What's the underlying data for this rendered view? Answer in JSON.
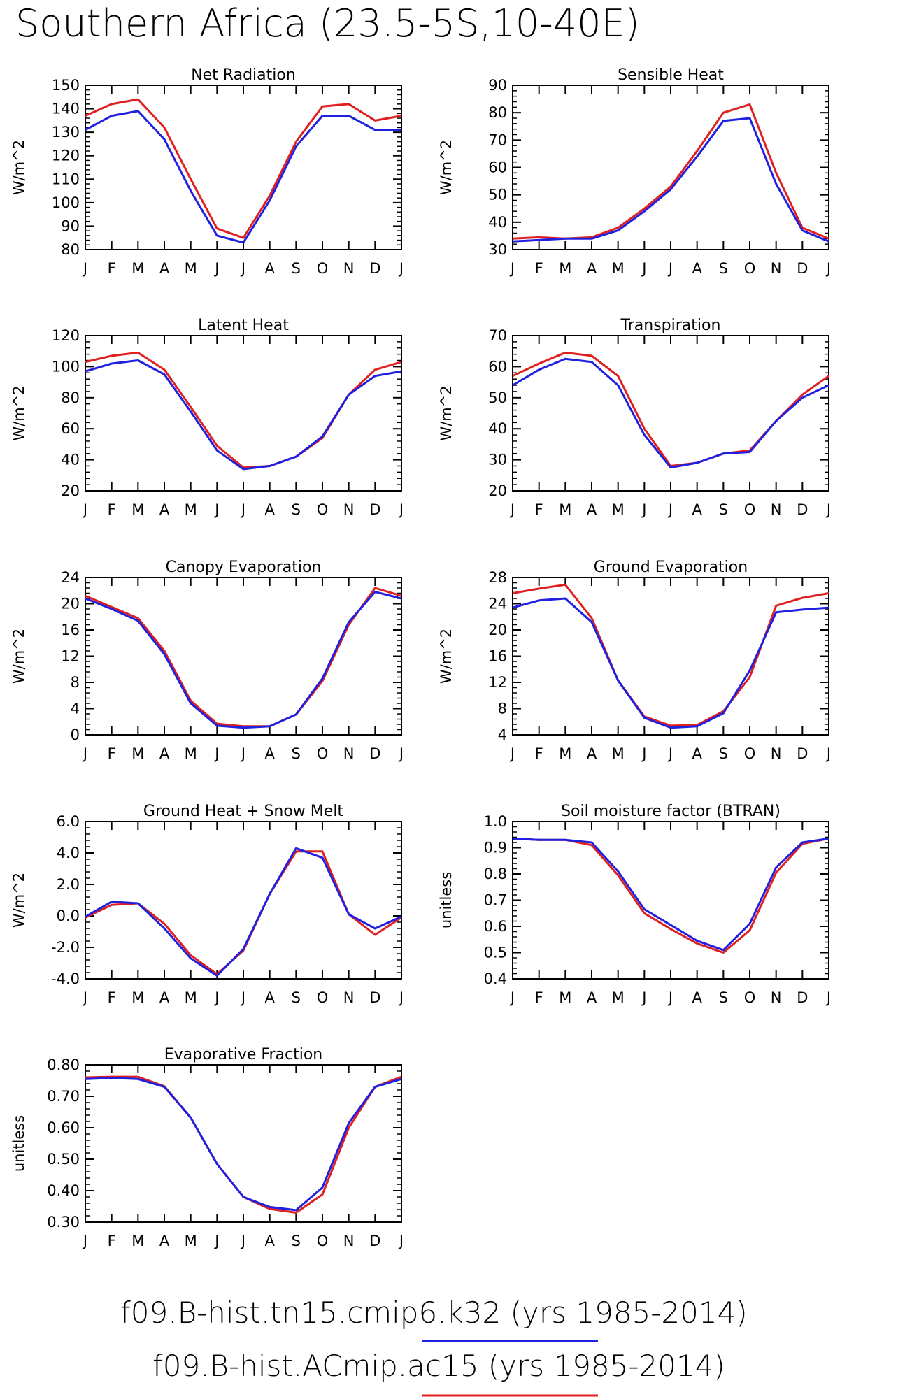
{
  "title": "Southern Africa (23.5-5S,10-40E)",
  "legend": [
    {
      "label": "f09.B-hist.tn15.cmip6.k32 (yrs 1985-2014)",
      "color": "#2020e0"
    },
    {
      "label": "f09.B-hist.ACmip.ac15 (yrs 1985-2014)",
      "color": "#e02020"
    }
  ],
  "chart_data": [
    {
      "type": "line",
      "title": "Net Radiation",
      "ylabel": "W/m^2",
      "x": [
        "J",
        "F",
        "M",
        "A",
        "M",
        "J",
        "J",
        "A",
        "S",
        "O",
        "N",
        "D",
        "J"
      ],
      "ylim": [
        80,
        150
      ],
      "yticks": [
        "150",
        "140",
        "130",
        "120",
        "110",
        "100",
        "90",
        "80"
      ],
      "series": [
        {
          "color": "#e02020",
          "values": [
            137,
            142,
            144,
            132,
            110,
            89,
            85,
            103,
            126,
            141,
            142,
            135,
            137
          ]
        },
        {
          "color": "#2020e0",
          "values": [
            131,
            137,
            139,
            127,
            105,
            86,
            83,
            101,
            124,
            137,
            137,
            131,
            131
          ]
        }
      ]
    },
    {
      "type": "line",
      "title": "Sensible Heat",
      "ylabel": "W/m^2",
      "x": [
        "J",
        "F",
        "M",
        "A",
        "M",
        "J",
        "J",
        "A",
        "S",
        "O",
        "N",
        "D",
        "J"
      ],
      "ylim": [
        30,
        90
      ],
      "yticks": [
        "90",
        "80",
        "70",
        "60",
        "50",
        "40",
        "30"
      ],
      "series": [
        {
          "color": "#e02020",
          "values": [
            34,
            34.5,
            34,
            34.5,
            38,
            45,
            53,
            66,
            80,
            83,
            58,
            38,
            34
          ]
        },
        {
          "color": "#2020e0",
          "values": [
            33,
            33.5,
            34,
            34,
            37,
            44,
            52,
            64,
            77,
            78,
            54,
            37,
            33
          ]
        }
      ]
    },
    {
      "type": "line",
      "title": "Latent Heat",
      "ylabel": "W/m^2",
      "x": [
        "J",
        "F",
        "M",
        "A",
        "M",
        "J",
        "J",
        "A",
        "S",
        "O",
        "N",
        "D",
        "J"
      ],
      "ylim": [
        20,
        120
      ],
      "yticks": [
        "120",
        "100",
        "80",
        "60",
        "40",
        "20"
      ],
      "series": [
        {
          "color": "#e02020",
          "values": [
            103,
            107,
            109,
            98,
            74,
            49,
            35,
            36,
            42,
            54,
            82,
            98,
            103
          ]
        },
        {
          "color": "#2020e0",
          "values": [
            97,
            102,
            104,
            95,
            71,
            46,
            34,
            36,
            42,
            55,
            82,
            94,
            97
          ]
        }
      ]
    },
    {
      "type": "line",
      "title": "Transpiration",
      "ylabel": "W/m^2",
      "x": [
        "J",
        "F",
        "M",
        "A",
        "M",
        "J",
        "J",
        "A",
        "S",
        "O",
        "N",
        "D",
        "J"
      ],
      "ylim": [
        20,
        70
      ],
      "yticks": [
        "70",
        "60",
        "50",
        "40",
        "30",
        "20"
      ],
      "series": [
        {
          "color": "#e02020",
          "values": [
            57,
            61,
            64.5,
            63.5,
            57,
            40,
            28,
            29,
            32,
            33,
            42.5,
            51,
            57
          ]
        },
        {
          "color": "#2020e0",
          "values": [
            54,
            59,
            62.5,
            61.5,
            54,
            38,
            27.5,
            29,
            32,
            32.5,
            42.5,
            50,
            54
          ]
        }
      ]
    },
    {
      "type": "line",
      "title": "Canopy Evaporation",
      "ylabel": "W/m^2",
      "x": [
        "J",
        "F",
        "M",
        "A",
        "M",
        "J",
        "J",
        "A",
        "S",
        "O",
        "N",
        "D",
        "J"
      ],
      "ylim": [
        0,
        24
      ],
      "yticks": [
        "24",
        "20",
        "16",
        "12",
        "8",
        "4",
        "0"
      ],
      "series": [
        {
          "color": "#e02020",
          "values": [
            21.2,
            19.5,
            17.8,
            12.8,
            5.2,
            1.7,
            1.3,
            1.3,
            3.1,
            8.2,
            16.8,
            22.4,
            21.2
          ]
        },
        {
          "color": "#2020e0",
          "values": [
            20.8,
            19.2,
            17.4,
            12.3,
            4.8,
            1.4,
            1.1,
            1.3,
            3.1,
            8.6,
            17.2,
            21.8,
            20.8
          ]
        }
      ]
    },
    {
      "type": "line",
      "title": "Ground Evaporation",
      "ylabel": "W/m^2",
      "x": [
        "J",
        "F",
        "M",
        "A",
        "M",
        "J",
        "J",
        "A",
        "S",
        "O",
        "N",
        "D",
        "J"
      ],
      "ylim": [
        4,
        28
      ],
      "yticks": [
        "28",
        "24",
        "20",
        "16",
        "12",
        "8",
        "4"
      ],
      "series": [
        {
          "color": "#e02020",
          "values": [
            25.6,
            26.3,
            26.9,
            21.8,
            12.3,
            6.8,
            5.4,
            5.5,
            7.6,
            12.8,
            23.7,
            24.9,
            25.6
          ]
        },
        {
          "color": "#2020e0",
          "values": [
            23.4,
            24.5,
            24.8,
            21.2,
            12.3,
            6.6,
            5.1,
            5.3,
            7.3,
            13.8,
            22.7,
            23.1,
            23.4
          ]
        }
      ]
    },
    {
      "type": "line",
      "title": "Ground Heat + Snow Melt",
      "ylabel": "W/m^2",
      "x": [
        "J",
        "F",
        "M",
        "A",
        "M",
        "J",
        "J",
        "A",
        "S",
        "O",
        "N",
        "D",
        "J"
      ],
      "ylim": [
        -4,
        6
      ],
      "yticks": [
        "6.0",
        "4.0",
        "2.0",
        "0.0",
        "-2.0",
        "-4.0"
      ],
      "series": [
        {
          "color": "#e02020",
          "values": [
            -0.1,
            0.7,
            0.8,
            -0.5,
            -2.5,
            -3.7,
            -2.2,
            1.4,
            4.1,
            4.1,
            0.1,
            -1.2,
            -0.1
          ]
        },
        {
          "color": "#2020e0",
          "values": [
            -0.05,
            0.9,
            0.8,
            -0.8,
            -2.7,
            -3.8,
            -2.1,
            1.4,
            4.3,
            3.7,
            0.1,
            -0.8,
            -0.05
          ]
        }
      ]
    },
    {
      "type": "line",
      "title": "Soil moisture factor (BTRAN)",
      "ylabel": "unitless",
      "x": [
        "J",
        "F",
        "M",
        "A",
        "M",
        "J",
        "J",
        "A",
        "S",
        "O",
        "N",
        "D",
        "J"
      ],
      "ylim": [
        0.4,
        1.0
      ],
      "yticks": [
        "1.0",
        "0.9",
        "0.8",
        "0.7",
        "0.6",
        "0.5",
        "0.4"
      ],
      "series": [
        {
          "color": "#e02020",
          "values": [
            0.935,
            0.93,
            0.93,
            0.91,
            0.795,
            0.65,
            0.59,
            0.535,
            0.5,
            0.585,
            0.805,
            0.915,
            0.935
          ]
        },
        {
          "color": "#2020e0",
          "values": [
            0.935,
            0.93,
            0.93,
            0.92,
            0.81,
            0.665,
            0.605,
            0.545,
            0.51,
            0.61,
            0.825,
            0.92,
            0.935
          ]
        }
      ]
    },
    {
      "type": "line",
      "title": "Evaporative Fraction",
      "ylabel": "unitless",
      "x": [
        "J",
        "F",
        "M",
        "A",
        "M",
        "J",
        "J",
        "A",
        "S",
        "O",
        "N",
        "D",
        "J"
      ],
      "ylim": [
        0.3,
        0.8
      ],
      "yticks": [
        "0.80",
        "0.70",
        "0.60",
        "0.50",
        "0.40",
        "0.30"
      ],
      "series": [
        {
          "color": "#e02020",
          "values": [
            0.76,
            0.762,
            0.762,
            0.732,
            0.632,
            0.485,
            0.38,
            0.342,
            0.33,
            0.388,
            0.6,
            0.73,
            0.762
          ]
        },
        {
          "color": "#2020e0",
          "values": [
            0.755,
            0.758,
            0.755,
            0.73,
            0.632,
            0.485,
            0.38,
            0.348,
            0.338,
            0.41,
            0.615,
            0.73,
            0.755
          ]
        }
      ]
    }
  ]
}
